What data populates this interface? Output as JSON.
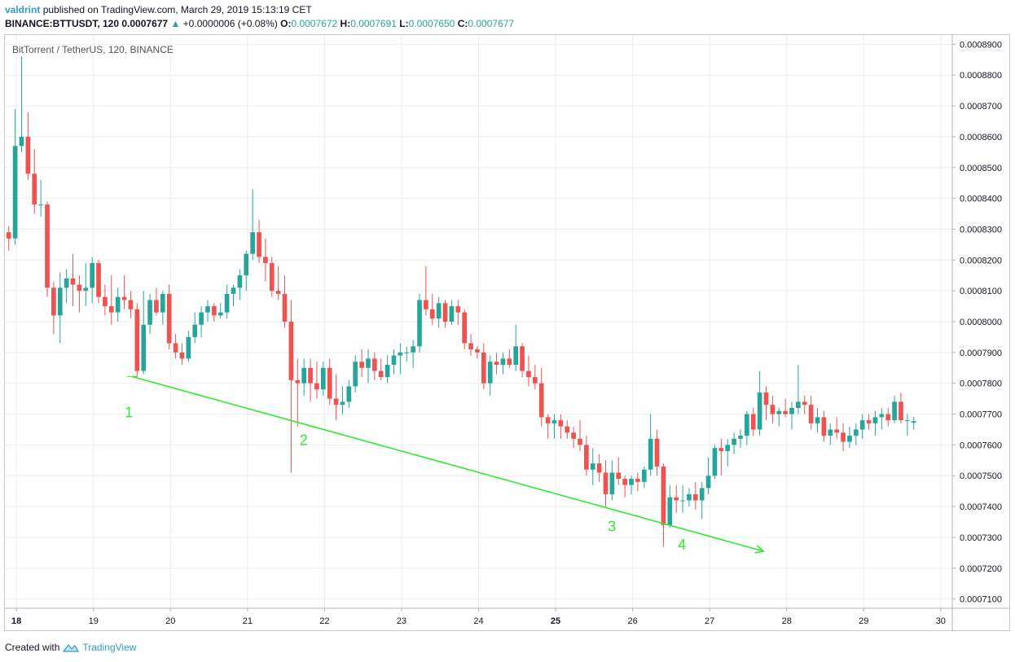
{
  "header": {
    "author": "valdrint",
    "published": "published on TradingView.com, March 29, 2019 15:13:19 CET",
    "symbol": "BINANCE:BTTUSDT, 120",
    "price": "0.0007677",
    "change_arrow": "▲",
    "change": "+0.0000006 (+0.08%)",
    "o_label": "O:",
    "o_value": "0.0007672",
    "h_label": "H:",
    "h_value": "0.0007691",
    "l_label": "L:",
    "l_value": "0.0007650",
    "c_label": "C:",
    "c_value": "0.0007677"
  },
  "legend": "BitTorrent / TetherUS, 120, BINANCE",
  "footer": {
    "created_with": "Created with",
    "brand": "TradingView"
  },
  "colors": {
    "up": "#26a69a",
    "down": "#ef5350",
    "trendline": "#33e833",
    "grid": "#e8eef2"
  },
  "chart_data": {
    "type": "candlestick",
    "interval_hours": 2,
    "x_start_day": 17.9,
    "x_ticks": [
      "18",
      "19",
      "20",
      "21",
      "22",
      "23",
      "24",
      "25",
      "26",
      "27",
      "28",
      "29",
      "30"
    ],
    "y_ticks": [
      "0.0007100",
      "0.0007200",
      "0.0007300",
      "0.0007400",
      "0.0007500",
      "0.0007600",
      "0.0007700",
      "0.0007800",
      "0.0007900",
      "0.0008000",
      "0.0008100",
      "0.0008200",
      "0.0008300",
      "0.0008400",
      "0.0008500",
      "0.0008600",
      "0.0008700",
      "0.0008800",
      "0.0008900"
    ],
    "ylim": [
      0.000707,
      0.000893
    ],
    "xlim_days": [
      17.85,
      30.15
    ],
    "candles": [
      [
        0.000829,
        0.000831,
        0.000823,
        0.000827
      ],
      [
        0.000827,
        0.000869,
        0.000825,
        0.000857
      ],
      [
        0.000857,
        0.000886,
        0.000855,
        0.00086
      ],
      [
        0.00086,
        0.000868,
        0.000846,
        0.000848
      ],
      [
        0.000848,
        0.000856,
        0.000835,
        0.000838
      ],
      [
        0.000838,
        0.000846,
        0.000834,
        0.000838
      ],
      [
        0.000838,
        0.000839,
        0.000808,
        0.000811
      ],
      [
        0.000811,
        0.000813,
        0.000796,
        0.000802
      ],
      [
        0.000802,
        0.000816,
        0.000793,
        0.000811
      ],
      [
        0.000811,
        0.000817,
        0.000806,
        0.000814
      ],
      [
        0.000814,
        0.000822,
        0.000805,
        0.000812
      ],
      [
        0.000812,
        0.000815,
        0.000803,
        0.00081
      ],
      [
        0.00081,
        0.000819,
        0.000805,
        0.000811
      ],
      [
        0.000811,
        0.000821,
        0.000806,
        0.000819
      ],
      [
        0.000819,
        0.00082,
        0.000806,
        0.000808
      ],
      [
        0.000808,
        0.000812,
        0.000802,
        0.000805
      ],
      [
        0.000805,
        0.000815,
        0.000799,
        0.000803
      ],
      [
        0.000803,
        0.000811,
        0.0008,
        0.000808
      ],
      [
        0.000808,
        0.000815,
        0.000804,
        0.000807
      ],
      [
        0.000807,
        0.00081,
        0.000801,
        0.000804
      ],
      [
        0.000804,
        0.000806,
        0.000782,
        0.000784
      ],
      [
        0.000784,
        0.00081,
        0.000783,
        0.000799
      ],
      [
        0.000799,
        0.000809,
        0.000796,
        0.000807
      ],
      [
        0.000807,
        0.000811,
        0.000802,
        0.000803
      ],
      [
        0.000803,
        0.00081,
        0.000799,
        0.000809
      ],
      [
        0.000809,
        0.000812,
        0.000791,
        0.000793
      ],
      [
        0.000793,
        0.000796,
        0.000788,
        0.00079
      ],
      [
        0.00079,
        0.000793,
        0.000786,
        0.000788
      ],
      [
        0.000788,
        0.000797,
        0.000787,
        0.000795
      ],
      [
        0.000795,
        0.000803,
        0.000793,
        0.000799
      ],
      [
        0.000799,
        0.000805,
        0.000795,
        0.000803
      ],
      [
        0.000803,
        0.000807,
        0.0008,
        0.000805
      ],
      [
        0.000805,
        0.000806,
        0.0008,
        0.000802
      ],
      [
        0.000802,
        0.000806,
        0.000801,
        0.000803
      ],
      [
        0.000803,
        0.000812,
        0.000801,
        0.000809
      ],
      [
        0.000809,
        0.000812,
        0.000805,
        0.000811
      ],
      [
        0.000811,
        0.000817,
        0.000807,
        0.000815
      ],
      [
        0.000815,
        0.000823,
        0.00081,
        0.000822
      ],
      [
        0.000822,
        0.000843,
        0.00082,
        0.000829
      ],
      [
        0.000829,
        0.000833,
        0.000819,
        0.000821
      ],
      [
        0.000821,
        0.000827,
        0.000813,
        0.000819
      ],
      [
        0.000819,
        0.000821,
        0.000808,
        0.00081
      ],
      [
        0.00081,
        0.000818,
        0.000807,
        0.000809
      ],
      [
        0.000809,
        0.000815,
        0.000798,
        0.0008
      ],
      [
        0.0008,
        0.000807,
        0.000751,
        0.000781
      ],
      [
        0.000781,
        0.000788,
        0.000766,
        0.00078
      ],
      [
        0.00078,
        0.000788,
        0.000776,
        0.000785
      ],
      [
        0.000785,
        0.000788,
        0.000774,
        0.00078
      ],
      [
        0.00078,
        0.000787,
        0.000775,
        0.000778
      ],
      [
        0.000778,
        0.000787,
        0.000776,
        0.000785
      ],
      [
        0.000785,
        0.000788,
        0.000773,
        0.000775
      ],
      [
        0.000775,
        0.000783,
        0.000768,
        0.000773
      ],
      [
        0.000773,
        0.000779,
        0.00077,
        0.000774
      ],
      [
        0.000774,
        0.000781,
        0.000772,
        0.000779
      ],
      [
        0.000779,
        0.000789,
        0.000777,
        0.000787
      ],
      [
        0.000787,
        0.000791,
        0.000782,
        0.000785
      ],
      [
        0.000785,
        0.000791,
        0.00078,
        0.000788
      ],
      [
        0.000788,
        0.00079,
        0.000781,
        0.000784
      ],
      [
        0.000784,
        0.000788,
        0.000781,
        0.000782
      ],
      [
        0.000782,
        0.000789,
        0.00078,
        0.000786
      ],
      [
        0.000786,
        0.000791,
        0.000783,
        0.000789
      ],
      [
        0.000789,
        0.000793,
        0.000783,
        0.00079
      ],
      [
        0.00079,
        0.000792,
        0.000787,
        0.00079
      ],
      [
        0.00079,
        0.000794,
        0.000785,
        0.000792
      ],
      [
        0.000792,
        0.000809,
        0.00079,
        0.000807
      ],
      [
        0.000807,
        0.000818,
        0.000802,
        0.000804
      ],
      [
        0.000804,
        0.000809,
        0.000799,
        0.000801
      ],
      [
        0.000801,
        0.000808,
        0.000798,
        0.000806
      ],
      [
        0.000806,
        0.000807,
        0.000798,
        0.0008
      ],
      [
        0.0008,
        0.000807,
        0.000799,
        0.000805
      ],
      [
        0.000805,
        0.000807,
        0.000799,
        0.000803
      ],
      [
        0.000803,
        0.000804,
        0.000791,
        0.000793
      ],
      [
        0.000793,
        0.000796,
        0.000789,
        0.000791
      ],
      [
        0.000791,
        0.000792,
        0.000788,
        0.00079
      ],
      [
        0.00079,
        0.000793,
        0.000778,
        0.00078
      ],
      [
        0.00078,
        0.000789,
        0.000776,
        0.000787
      ],
      [
        0.000787,
        0.00079,
        0.000783,
        0.000786
      ],
      [
        0.000786,
        0.00079,
        0.000783,
        0.000788
      ],
      [
        0.000788,
        0.000791,
        0.000785,
        0.000786
      ],
      [
        0.000786,
        0.000799,
        0.000784,
        0.000792
      ],
      [
        0.000792,
        0.000793,
        0.000782,
        0.000784
      ],
      [
        0.000784,
        0.000789,
        0.000779,
        0.000782
      ],
      [
        0.000782,
        0.000786,
        0.000778,
        0.00078
      ],
      [
        0.00078,
        0.000785,
        0.000766,
        0.000769
      ],
      [
        0.000769,
        0.00077,
        0.000762,
        0.000767
      ],
      [
        0.000767,
        0.00077,
        0.000762,
        0.000768
      ],
      [
        0.000768,
        0.00077,
        0.000762,
        0.000766
      ],
      [
        0.000766,
        0.000768,
        0.000762,
        0.000764
      ],
      [
        0.000764,
        0.000766,
        0.000759,
        0.000762
      ],
      [
        0.000762,
        0.000768,
        0.000758,
        0.00076
      ],
      [
        0.00076,
        0.000763,
        0.00075,
        0.000752
      ],
      [
        0.000752,
        0.000759,
        0.000747,
        0.000754
      ],
      [
        0.000754,
        0.000757,
        0.000748,
        0.000751
      ],
      [
        0.000751,
        0.000755,
        0.00074,
        0.000744
      ],
      [
        0.000744,
        0.000755,
        0.000742,
        0.000751
      ],
      [
        0.000751,
        0.000756,
        0.000747,
        0.000749
      ],
      [
        0.000749,
        0.00075,
        0.000743,
        0.000747
      ],
      [
        0.000747,
        0.00075,
        0.000744,
        0.000749
      ],
      [
        0.000749,
        0.000751,
        0.000745,
        0.000748
      ],
      [
        0.000748,
        0.000753,
        0.000746,
        0.000752
      ],
      [
        0.000752,
        0.00077,
        0.00075,
        0.000762
      ],
      [
        0.000762,
        0.000765,
        0.00075,
        0.000753
      ],
      [
        0.000753,
        0.000754,
        0.000727,
        0.000734
      ],
      [
        0.000734,
        0.000747,
        0.000733,
        0.000743
      ],
      [
        0.000743,
        0.000747,
        0.000738,
        0.000742
      ],
      [
        0.000742,
        0.000747,
        0.000738,
        0.000742
      ],
      [
        0.000742,
        0.000746,
        0.00074,
        0.000744
      ],
      [
        0.000744,
        0.000748,
        0.000739,
        0.000742
      ],
      [
        0.000742,
        0.000748,
        0.000736,
        0.000746
      ],
      [
        0.000746,
        0.000756,
        0.000744,
        0.00075
      ],
      [
        0.00075,
        0.00076,
        0.000749,
        0.000759
      ],
      [
        0.000759,
        0.000762,
        0.00075,
        0.000758
      ],
      [
        0.000758,
        0.000762,
        0.000753,
        0.00076
      ],
      [
        0.00076,
        0.000764,
        0.000757,
        0.000762
      ],
      [
        0.000762,
        0.000765,
        0.000759,
        0.000763
      ],
      [
        0.000763,
        0.000771,
        0.00076,
        0.00077
      ],
      [
        0.00077,
        0.000772,
        0.000763,
        0.000765
      ],
      [
        0.000765,
        0.000784,
        0.000763,
        0.000777
      ],
      [
        0.000777,
        0.000779,
        0.000768,
        0.000773
      ],
      [
        0.000773,
        0.000776,
        0.000767,
        0.00077
      ],
      [
        0.00077,
        0.000772,
        0.000766,
        0.000771
      ],
      [
        0.000771,
        0.000775,
        0.000769,
        0.00077
      ],
      [
        0.00077,
        0.000774,
        0.000765,
        0.000772
      ],
      [
        0.000772,
        0.000786,
        0.00077,
        0.000774
      ],
      [
        0.000774,
        0.000776,
        0.00077,
        0.000773
      ],
      [
        0.000773,
        0.000776,
        0.000765,
        0.000767
      ],
      [
        0.000767,
        0.000772,
        0.000764,
        0.000769
      ],
      [
        0.000769,
        0.000771,
        0.000761,
        0.000763
      ],
      [
        0.000763,
        0.000767,
        0.00076,
        0.000765
      ],
      [
        0.000765,
        0.000769,
        0.000762,
        0.000764
      ],
      [
        0.000764,
        0.000767,
        0.000758,
        0.000761
      ],
      [
        0.000761,
        0.000766,
        0.000759,
        0.000763
      ],
      [
        0.000763,
        0.000767,
        0.00076,
        0.000765
      ],
      [
        0.000765,
        0.00077,
        0.000762,
        0.000768
      ],
      [
        0.000768,
        0.00077,
        0.000765,
        0.000767
      ],
      [
        0.000767,
        0.000771,
        0.000763,
        0.000769
      ],
      [
        0.000769,
        0.000772,
        0.000765,
        0.00077
      ],
      [
        0.00077,
        0.000772,
        0.000766,
        0.000768
      ],
      [
        0.000768,
        0.000776,
        0.000767,
        0.000774
      ],
      [
        0.000774,
        0.000777,
        0.000767,
        0.000768
      ],
      [
        0.000768,
        0.00077,
        0.000763,
        0.000768
      ],
      [
        0.0007672,
        0.0007691,
        0.000765,
        0.0007677
      ]
    ],
    "trendline": {
      "from": [
        19.5,
        0.0007822
      ],
      "to": [
        27.7,
        0.0007255
      ]
    },
    "annotations": [
      {
        "text": "1",
        "x": 19.46,
        "y": 0.000769
      },
      {
        "text": "2",
        "x": 21.73,
        "y": 0.00076
      },
      {
        "text": "3",
        "x": 25.73,
        "y": 0.000732
      },
      {
        "text": "4",
        "x": 26.64,
        "y": 0.000726
      }
    ]
  }
}
